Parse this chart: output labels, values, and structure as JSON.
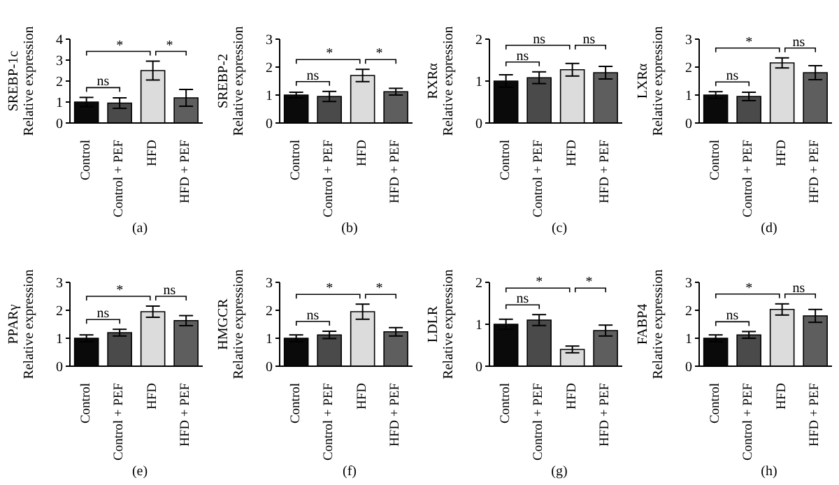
{
  "chart_data": [
    {
      "type": "bar",
      "title": "(a)",
      "ylabel": "SREBP-1c\nRelative expression",
      "categories": [
        "Control",
        "Control + PEF",
        "HFD",
        "HFD + PEF"
      ],
      "values": [
        1.0,
        0.95,
        2.5,
        1.2
      ],
      "errors": [
        0.22,
        0.25,
        0.45,
        0.4
      ],
      "colors": [
        "#0a0a0a",
        "#4a4a4a",
        "#dcdcdc",
        "#5e5e5e"
      ],
      "ylim": [
        0,
        4
      ],
      "yticks": [
        0,
        1,
        2,
        3,
        4
      ],
      "annotations": [
        "ns",
        "*",
        "*"
      ]
    },
    {
      "type": "bar",
      "title": "(b)",
      "ylabel": "SREBP-2\nRelative expression",
      "categories": [
        "Control",
        "Control + PEF",
        "HFD",
        "HFD + PEF"
      ],
      "values": [
        1.0,
        0.95,
        1.7,
        1.12
      ],
      "errors": [
        0.1,
        0.18,
        0.22,
        0.12
      ],
      "colors": [
        "#0a0a0a",
        "#4a4a4a",
        "#dcdcdc",
        "#5e5e5e"
      ],
      "ylim": [
        0,
        3
      ],
      "yticks": [
        0,
        1,
        2,
        3
      ],
      "annotations": [
        "ns",
        "*",
        "*"
      ]
    },
    {
      "type": "bar",
      "title": "(c)",
      "ylabel": "RXRα\nRelative expression",
      "categories": [
        "Control",
        "Control + PEF",
        "HFD",
        "HFD + PEF"
      ],
      "values": [
        1.0,
        1.08,
        1.27,
        1.2
      ],
      "errors": [
        0.15,
        0.14,
        0.15,
        0.15
      ],
      "colors": [
        "#0a0a0a",
        "#4a4a4a",
        "#dcdcdc",
        "#5e5e5e"
      ],
      "ylim": [
        0,
        2
      ],
      "yticks": [
        0,
        1,
        2
      ],
      "annotations": [
        "ns",
        "ns",
        "ns"
      ]
    },
    {
      "type": "bar",
      "title": "(d)",
      "ylabel": "LXRα\nRelative expression",
      "categories": [
        "Control",
        "Control + PEF",
        "HFD",
        "HFD + PEF"
      ],
      "values": [
        1.0,
        0.95,
        2.15,
        1.8
      ],
      "errors": [
        0.12,
        0.15,
        0.18,
        0.25
      ],
      "colors": [
        "#0a0a0a",
        "#4a4a4a",
        "#dcdcdc",
        "#5e5e5e"
      ],
      "ylim": [
        0,
        3
      ],
      "yticks": [
        0,
        1,
        2,
        3
      ],
      "annotations": [
        "ns",
        "*",
        "ns"
      ]
    },
    {
      "type": "bar",
      "title": "(e)",
      "ylabel": "PPARγ\nRelative expression",
      "categories": [
        "Control",
        "Control + PEF",
        "HFD",
        "HFD + PEF"
      ],
      "values": [
        1.0,
        1.2,
        1.95,
        1.63
      ],
      "errors": [
        0.12,
        0.12,
        0.2,
        0.18
      ],
      "colors": [
        "#0a0a0a",
        "#4a4a4a",
        "#dcdcdc",
        "#5e5e5e"
      ],
      "ylim": [
        0,
        3
      ],
      "yticks": [
        0,
        1,
        2,
        3
      ],
      "annotations": [
        "ns",
        "*",
        "ns"
      ]
    },
    {
      "type": "bar",
      "title": "(f)",
      "ylabel": "HMGCR\nRelative expression",
      "categories": [
        "Control",
        "Control + PEF",
        "HFD",
        "HFD + PEF"
      ],
      "values": [
        1.0,
        1.12,
        1.95,
        1.23
      ],
      "errors": [
        0.12,
        0.13,
        0.27,
        0.15
      ],
      "colors": [
        "#0a0a0a",
        "#4a4a4a",
        "#dcdcdc",
        "#5e5e5e"
      ],
      "ylim": [
        0,
        3
      ],
      "yticks": [
        0,
        1,
        2,
        3
      ],
      "annotations": [
        "ns",
        "*",
        "*"
      ]
    },
    {
      "type": "bar",
      "title": "(g)",
      "ylabel": "LDLR\nRelative expression",
      "categories": [
        "Control",
        "Control + PEF",
        "HFD",
        "HFD + PEF"
      ],
      "values": [
        1.0,
        1.1,
        0.4,
        0.85
      ],
      "errors": [
        0.12,
        0.13,
        0.08,
        0.13
      ],
      "colors": [
        "#0a0a0a",
        "#4a4a4a",
        "#dcdcdc",
        "#5e5e5e"
      ],
      "ylim": [
        0,
        2
      ],
      "yticks": [
        0,
        1,
        2
      ],
      "annotations": [
        "ns",
        "*",
        "*"
      ]
    },
    {
      "type": "bar",
      "title": "(h)",
      "ylabel": "FABP4\nRelative expression",
      "categories": [
        "Control",
        "Control + PEF",
        "HFD",
        "HFD + PEF"
      ],
      "values": [
        1.0,
        1.12,
        2.03,
        1.8
      ],
      "errors": [
        0.12,
        0.12,
        0.2,
        0.23
      ],
      "colors": [
        "#0a0a0a",
        "#4a4a4a",
        "#dcdcdc",
        "#5e5e5e"
      ],
      "ylim": [
        0,
        3
      ],
      "yticks": [
        0,
        1,
        2,
        3
      ],
      "annotations": [
        "ns",
        "*",
        "ns"
      ]
    }
  ]
}
